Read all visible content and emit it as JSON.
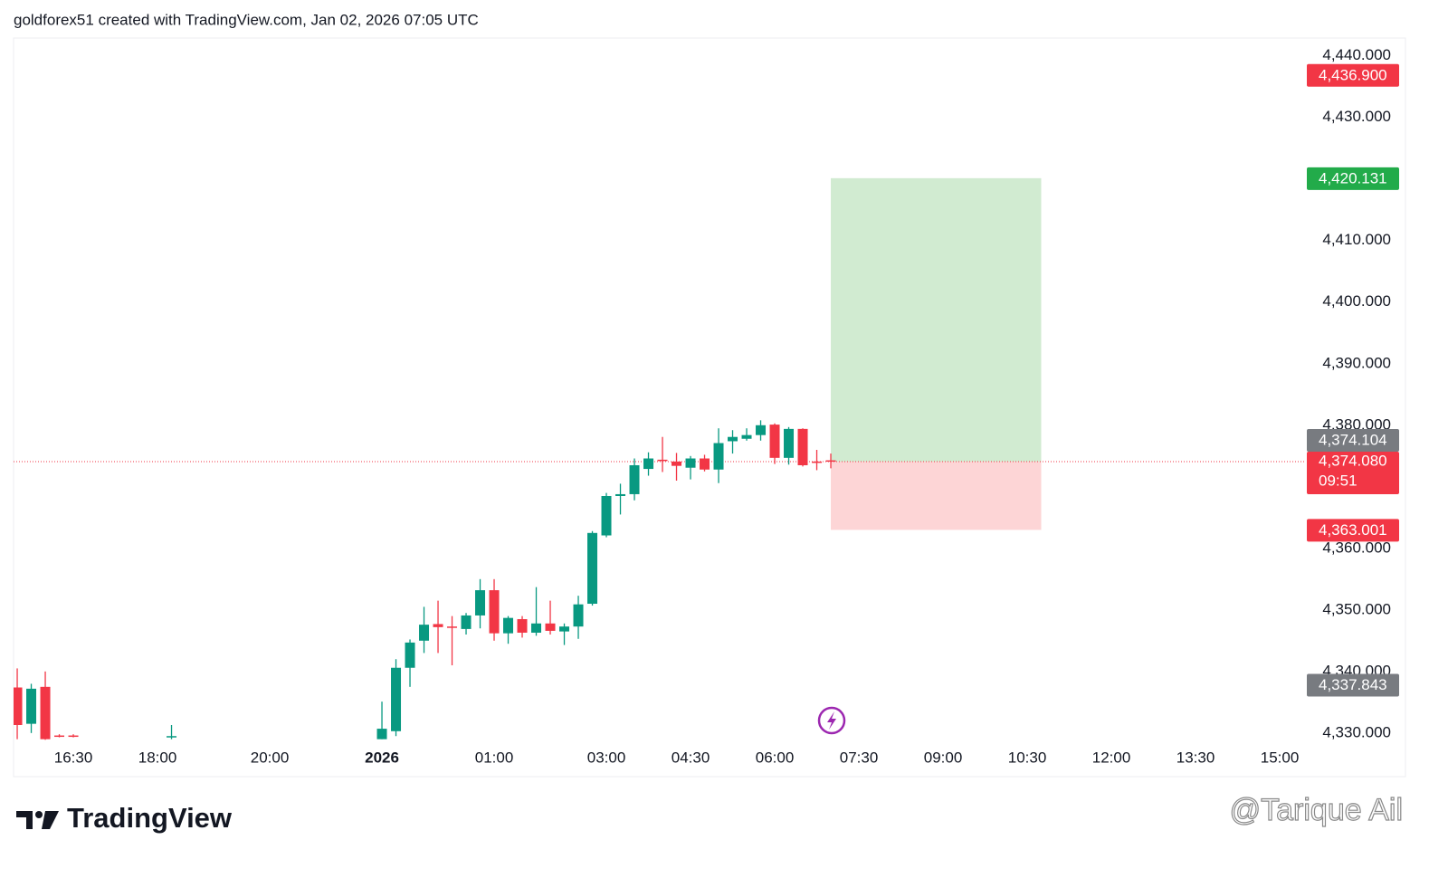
{
  "header": "goldforex51 created with TradingView.com, Jan 02, 2026 07:05 UTC",
  "chart_data": {
    "type": "candlestick",
    "up_color": "#089981",
    "down_color": "#f23645",
    "x": [
      0,
      1,
      2,
      3,
      4,
      11,
      26,
      27,
      28,
      29,
      30,
      31,
      32,
      33,
      34,
      35,
      36,
      37,
      38,
      39,
      40,
      41,
      42,
      43,
      44,
      45,
      46,
      47,
      48,
      49,
      50,
      51,
      52,
      53,
      54,
      55,
      56,
      57,
      58
    ],
    "open": [
      4337.4,
      4331.5,
      4337.5,
      4329.6,
      4329.6,
      4329.5,
      4329.0,
      4330.3,
      4340.6,
      4345.0,
      4347.7,
      4347.3,
      4346.9,
      4349.1,
      4353.2,
      4346.2,
      4348.5,
      4346.3,
      4347.8,
      4346.5,
      4347.3,
      4351.0,
      4362.1,
      4368.5,
      4368.8,
      4372.9,
      4374.4,
      4374.1,
      4373.1,
      4374.6,
      4372.8,
      4377.4,
      4377.8,
      4378.4,
      4380.1,
      4374.7,
      4379.4,
      4374.1,
      4374.3
    ],
    "high": [
      4340.5,
      4338.0,
      4340.0,
      4329.8,
      4329.8,
      4331.3,
      4335.1,
      4342.0,
      4345.2,
      4350.5,
      4351.5,
      4349.0,
      4349.5,
      4355.0,
      4355.0,
      4349.0,
      4349.0,
      4353.7,
      4351.5,
      4347.8,
      4352.3,
      4362.8,
      4369.0,
      4370.5,
      4374.6,
      4375.6,
      4378.1,
      4375.5,
      4375.0,
      4375.2,
      4379.5,
      4379.2,
      4379.5,
      4380.8,
      4380.3,
      4379.7,
      4379.5,
      4376.0,
      4375.4
    ],
    "low": [
      4329.0,
      4330.0,
      4328.9,
      4329.3,
      4329.3,
      4329.0,
      4329.0,
      4329.5,
      4337.5,
      4343.0,
      4343.0,
      4341.0,
      4346.0,
      4347.0,
      4345.0,
      4344.5,
      4345.5,
      4345.8,
      4346.0,
      4344.3,
      4345.3,
      4350.7,
      4361.8,
      4365.5,
      4367.8,
      4371.8,
      4372.4,
      4371.0,
      4371.2,
      4372.5,
      4370.6,
      4375.4,
      4377.5,
      4377.5,
      4373.7,
      4373.6,
      4373.3,
      4372.7,
      4373.0
    ],
    "close": [
      4331.3,
      4337.2,
      4329.0,
      4329.5,
      4329.5,
      4329.5,
      4330.7,
      4340.6,
      4344.7,
      4347.6,
      4347.2,
      4347.1,
      4349.1,
      4353.2,
      4346.2,
      4348.7,
      4346.3,
      4347.8,
      4346.6,
      4347.3,
      4350.9,
      4362.5,
      4368.5,
      4368.8,
      4373.5,
      4374.6,
      4374.2,
      4373.4,
      4374.6,
      4372.8,
      4377.1,
      4378.1,
      4378.4,
      4380.0,
      4374.7,
      4379.4,
      4373.5,
      4373.9,
      4374.08
    ],
    "xlim": [
      -0.26,
      91.87
    ],
    "xticks": [
      {
        "value": 4,
        "label": "16:30"
      },
      {
        "value": 10,
        "label": "18:00"
      },
      {
        "value": 18,
        "label": "20:00"
      },
      {
        "value": 26,
        "label": "2026",
        "bold": true
      },
      {
        "value": 34,
        "label": "01:00"
      },
      {
        "value": 42,
        "label": "03:00"
      },
      {
        "value": 48,
        "label": "04:30"
      },
      {
        "value": 54,
        "label": "06:00"
      },
      {
        "value": 60,
        "label": "07:30"
      },
      {
        "value": 66,
        "label": "09:00"
      },
      {
        "value": 72,
        "label": "10:30"
      },
      {
        "value": 78,
        "label": "12:00"
      },
      {
        "value": 84,
        "label": "13:30"
      },
      {
        "value": 90,
        "label": "15:00"
      }
    ],
    "ylim": [
      4328.8,
      4442.9
    ],
    "yticks": [
      {
        "value": 4330,
        "label": "4,330.000"
      },
      {
        "value": 4340,
        "label": "4,340.000"
      },
      {
        "value": 4350,
        "label": "4,350.000"
      },
      {
        "value": 4360,
        "label": "4,360.000"
      },
      {
        "value": 4380,
        "label": "4,380.000"
      },
      {
        "value": 4390,
        "label": "4,390.000"
      },
      {
        "value": 4400,
        "label": "4,400.000"
      },
      {
        "value": 4410,
        "label": "4,410.000"
      },
      {
        "value": 4420,
        "label": "4,420.000"
      },
      {
        "value": 4430,
        "label": "4,430.000"
      },
      {
        "value": 4440,
        "label": "4,440.000"
      }
    ],
    "position": {
      "x_start": 58,
      "x_end": 73,
      "entry": 4374.08,
      "target": 4420.131,
      "stop": 4363.001,
      "profit_color": "#d1ebd1",
      "loss_color": "#fdd5d6"
    },
    "current_price": {
      "value": 4374.08,
      "label": "4,374.080",
      "countdown": "09:51",
      "color": "#f23645"
    },
    "price_tags": [
      {
        "value": 4436.9,
        "label": "4,436.900",
        "color": "#f23645"
      },
      {
        "value": 4420.131,
        "label": "4,420.131",
        "color": "#22ab4a"
      },
      {
        "value": 4374.104,
        "label": "4,374.104",
        "color": "#787b80"
      },
      {
        "value": 4363.001,
        "label": "4,363.001",
        "color": "#f23645"
      },
      {
        "value": 4337.843,
        "label": "4,337.843",
        "color": "#787b80"
      }
    ]
  },
  "footer": {
    "logo": "TradingView",
    "watermark": "@Tarique Ail"
  }
}
